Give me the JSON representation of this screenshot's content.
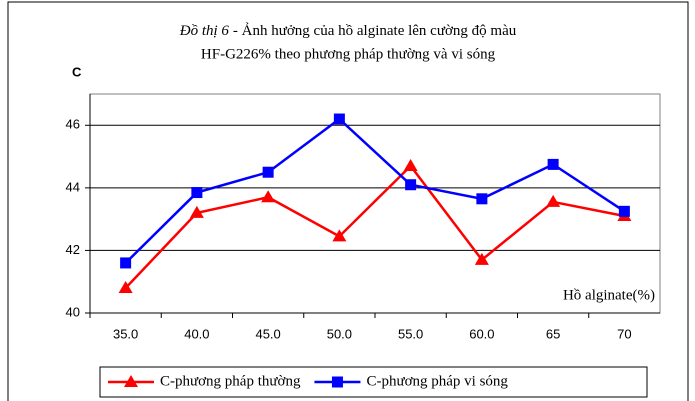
{
  "chart_data": {
    "type": "line",
    "title_prefix": "Đồ thị 6",
    "title": [
      "- Ảnh hưởng của hồ alginate lên cường độ màu",
      "HF-G226% theo phương pháp thường và vi sóng"
    ],
    "y_label": "C",
    "x_label": "Hồ alginate(%)",
    "categories": [
      "35.0",
      "40.0",
      "45.0",
      "50.0",
      "55.0",
      "60.0",
      "65",
      "70"
    ],
    "series": [
      {
        "name": "C-phương pháp thường",
        "color": "#ff0000",
        "marker": "triangle",
        "values": [
          40.8,
          43.2,
          43.7,
          42.45,
          44.7,
          41.7,
          43.55,
          43.1
        ]
      },
      {
        "name": "C-phương pháp vi sóng",
        "color": "#0000ff",
        "marker": "square",
        "values": [
          41.6,
          43.85,
          44.5,
          46.2,
          44.1,
          43.65,
          44.75,
          43.25
        ]
      }
    ],
    "ylim": [
      40,
      47
    ],
    "yticks": [
      40,
      42,
      44,
      46
    ],
    "grid": true,
    "legend": "bottom"
  }
}
